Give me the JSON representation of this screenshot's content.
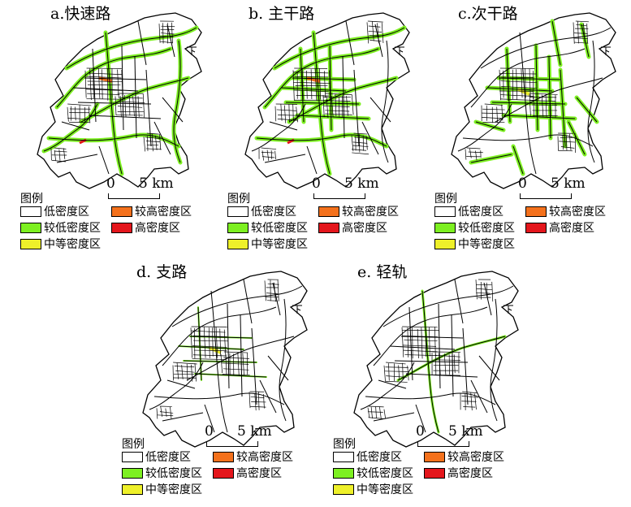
{
  "legend": {
    "title": "图例",
    "classes": [
      {
        "label": "低密度区",
        "color": "#ffffff"
      },
      {
        "label": "较高密度区",
        "color": "#f4711c"
      },
      {
        "label": "较低密度区",
        "color": "#7df021"
      },
      {
        "label": "高密度区",
        "color": "#e4161c"
      },
      {
        "label": "中等密度区",
        "color": "#eef02a"
      }
    ]
  },
  "scale": {
    "zero": "0",
    "distance": "5 km"
  },
  "panels": [
    {
      "title": "a.快速路",
      "highlight": "expressway"
    },
    {
      "title": "b. 主干路",
      "highlight": "arterial"
    },
    {
      "title": "c.次干路",
      "highlight": "secondary"
    },
    {
      "title": "d. 支路",
      "highlight": "branch"
    },
    {
      "title": "e. 轻轨",
      "highlight": "lightrail"
    }
  ]
}
